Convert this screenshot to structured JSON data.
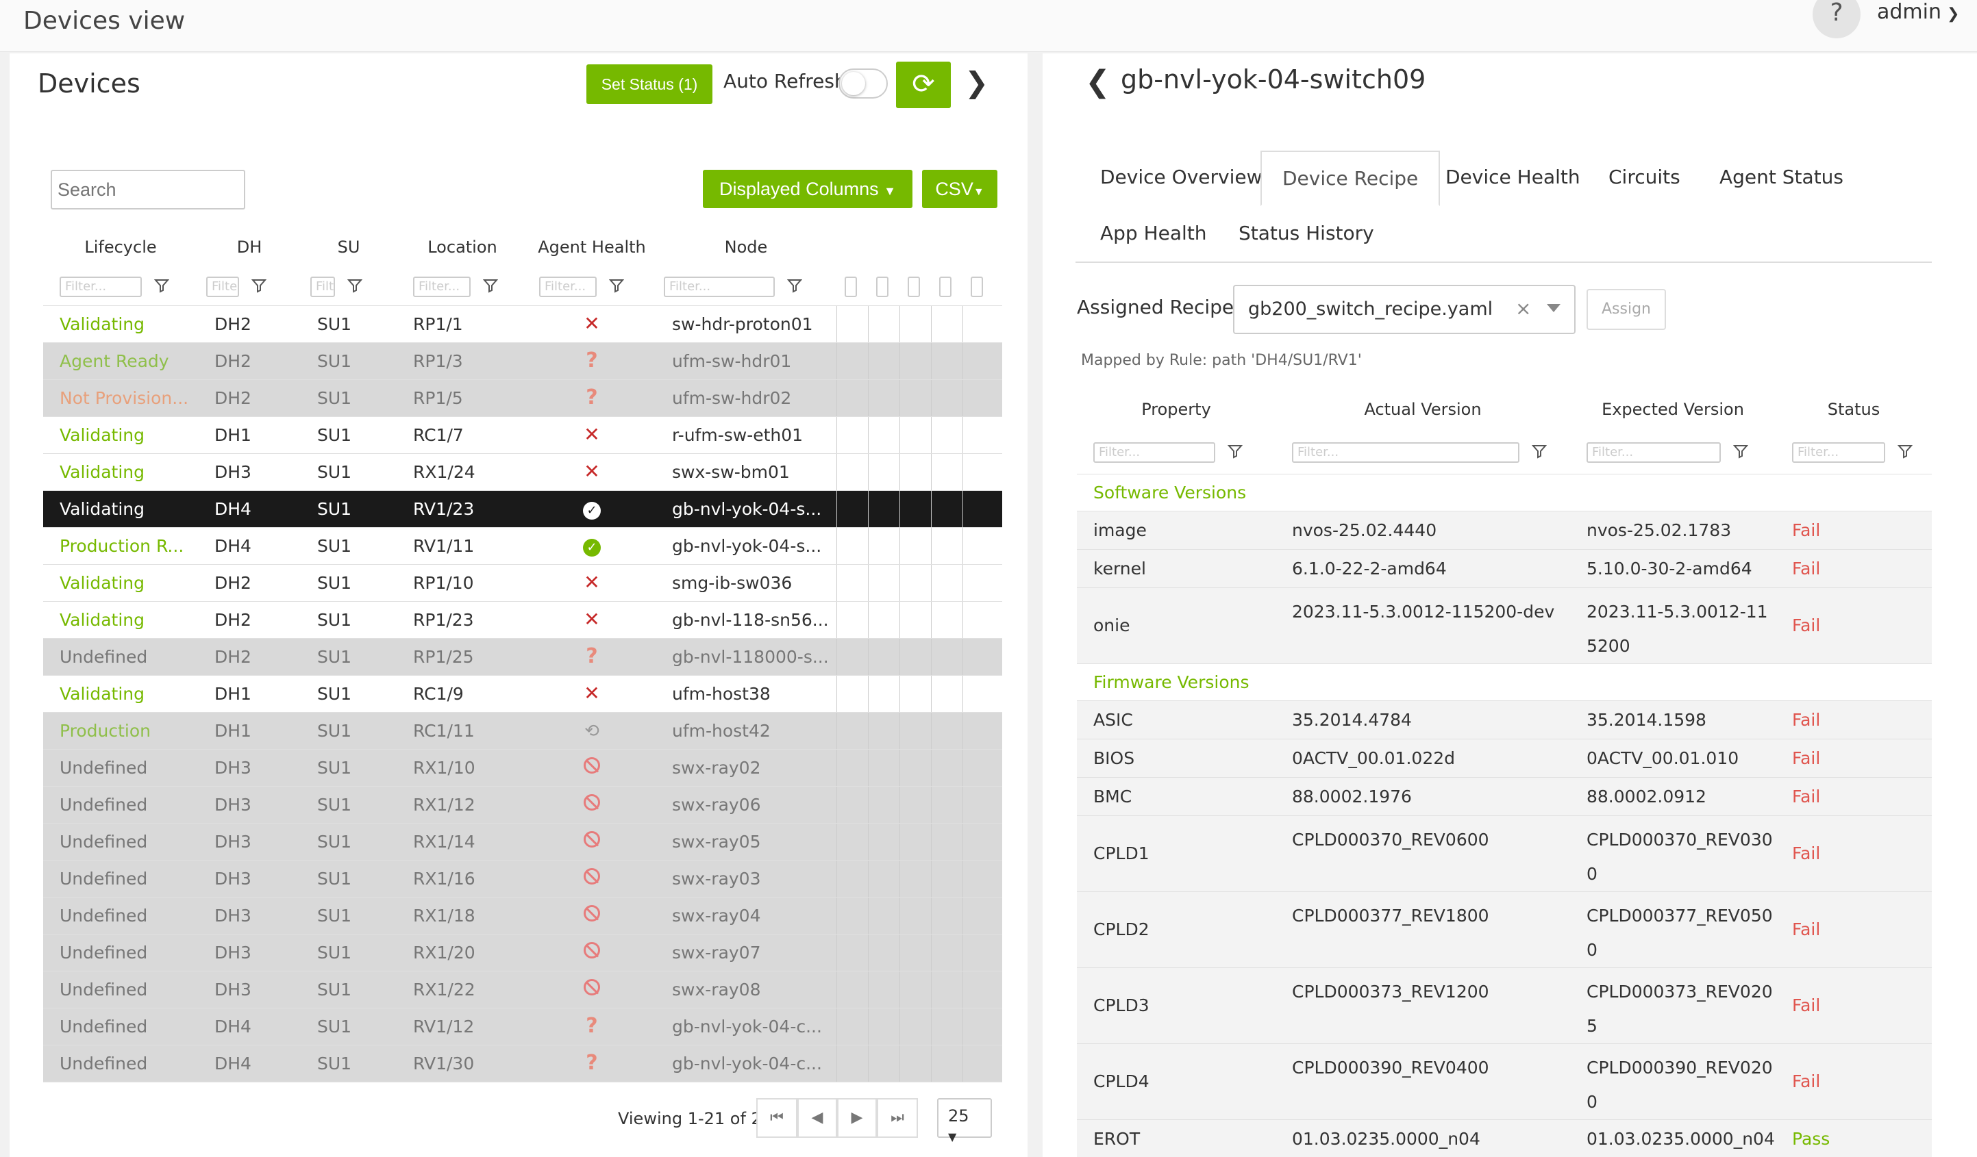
{
  "app": {
    "title": "Devices view",
    "user": "admin",
    "help": "?"
  },
  "left": {
    "title": "Devices",
    "set_status": "Set Status (1)",
    "auto_refresh": "Auto Refresh",
    "search_placeholder": "Search",
    "displayed_columns": "Displayed Columns",
    "csv": "CSV",
    "columns": [
      "Lifecycle",
      "DH",
      "SU",
      "Location",
      "Agent Health",
      "Node"
    ],
    "filter_placeholder": "Filter...",
    "rows": [
      {
        "lifecycle": "Validating",
        "dh": "DH2",
        "su": "SU1",
        "loc": "RP1/1",
        "health": "x",
        "node": "sw-hdr-proton01",
        "style": "data",
        "lc": "green"
      },
      {
        "lifecycle": "Agent Ready",
        "dh": "DH2",
        "su": "SU1",
        "loc": "RP1/3",
        "health": "q",
        "node": "ufm-sw-hdr01",
        "style": "grey",
        "lc": "grey-green"
      },
      {
        "lifecycle": "Not Provision...",
        "dh": "DH2",
        "su": "SU1",
        "loc": "RP1/5",
        "health": "q",
        "node": "ufm-sw-hdr02",
        "style": "grey",
        "lc": "orange"
      },
      {
        "lifecycle": "Validating",
        "dh": "DH1",
        "su": "SU1",
        "loc": "RC1/7",
        "health": "x",
        "node": "r-ufm-sw-eth01",
        "style": "data",
        "lc": "green"
      },
      {
        "lifecycle": "Validating",
        "dh": "DH3",
        "su": "SU1",
        "loc": "RX1/24",
        "health": "x",
        "node": "swx-sw-bm01",
        "style": "data",
        "lc": "green"
      },
      {
        "lifecycle": "Validating",
        "dh": "DH4",
        "su": "SU1",
        "loc": "RV1/23",
        "health": "ok-w",
        "node": "gb-nvl-yok-04-s...",
        "style": "sel",
        "lc": "sel"
      },
      {
        "lifecycle": "Production R...",
        "dh": "DH4",
        "su": "SU1",
        "loc": "RV1/11",
        "health": "ok",
        "node": "gb-nvl-yok-04-s...",
        "style": "data",
        "lc": "green"
      },
      {
        "lifecycle": "Validating",
        "dh": "DH2",
        "su": "SU1",
        "loc": "RP1/10",
        "health": "x",
        "node": "smg-ib-sw036",
        "style": "data",
        "lc": "green"
      },
      {
        "lifecycle": "Validating",
        "dh": "DH2",
        "su": "SU1",
        "loc": "RP1/23",
        "health": "x",
        "node": "gb-nvl-118-sn56...",
        "style": "data",
        "lc": "green"
      },
      {
        "lifecycle": "Undefined",
        "dh": "DH2",
        "su": "SU1",
        "loc": "RP1/25",
        "health": "q",
        "node": "gb-nvl-118000-s...",
        "style": "grey",
        "lc": ""
      },
      {
        "lifecycle": "Validating",
        "dh": "DH1",
        "su": "SU1",
        "loc": "RC1/9",
        "health": "x",
        "node": "ufm-host38",
        "style": "data",
        "lc": "green"
      },
      {
        "lifecycle": "Production",
        "dh": "DH1",
        "su": "SU1",
        "loc": "RC1/11",
        "health": "hist",
        "node": "ufm-host42",
        "style": "grey",
        "lc": "grey-green"
      },
      {
        "lifecycle": "Undefined",
        "dh": "DH3",
        "su": "SU1",
        "loc": "RX1/10",
        "health": "ban",
        "node": "swx-ray02",
        "style": "grey",
        "lc": ""
      },
      {
        "lifecycle": "Undefined",
        "dh": "DH3",
        "su": "SU1",
        "loc": "RX1/12",
        "health": "ban",
        "node": "swx-ray06",
        "style": "grey",
        "lc": ""
      },
      {
        "lifecycle": "Undefined",
        "dh": "DH3",
        "su": "SU1",
        "loc": "RX1/14",
        "health": "ban",
        "node": "swx-ray05",
        "style": "grey",
        "lc": ""
      },
      {
        "lifecycle": "Undefined",
        "dh": "DH3",
        "su": "SU1",
        "loc": "RX1/16",
        "health": "ban",
        "node": "swx-ray03",
        "style": "grey",
        "lc": ""
      },
      {
        "lifecycle": "Undefined",
        "dh": "DH3",
        "su": "SU1",
        "loc": "RX1/18",
        "health": "ban",
        "node": "swx-ray04",
        "style": "grey",
        "lc": ""
      },
      {
        "lifecycle": "Undefined",
        "dh": "DH3",
        "su": "SU1",
        "loc": "RX1/20",
        "health": "ban",
        "node": "swx-ray07",
        "style": "grey",
        "lc": ""
      },
      {
        "lifecycle": "Undefined",
        "dh": "DH3",
        "su": "SU1",
        "loc": "RX1/22",
        "health": "ban",
        "node": "swx-ray08",
        "style": "grey",
        "lc": ""
      },
      {
        "lifecycle": "Undefined",
        "dh": "DH4",
        "su": "SU1",
        "loc": "RV1/12",
        "health": "q",
        "node": "gb-nvl-yok-04-c...",
        "style": "grey",
        "lc": ""
      },
      {
        "lifecycle": "Undefined",
        "dh": "DH4",
        "su": "SU1",
        "loc": "RV1/30",
        "health": "q",
        "node": "gb-nvl-yok-04-c...",
        "style": "grey",
        "lc": ""
      }
    ],
    "pager": {
      "text": "Viewing 1-21 of 21",
      "page_size": "25"
    }
  },
  "right": {
    "device": "gb-nvl-yok-04-switch09",
    "tabs": [
      "Device Overview",
      "Device Recipe",
      "Device Health",
      "Circuits",
      "Agent Status",
      "App Health",
      "Status History"
    ],
    "active_tab": "Device Recipe",
    "assigned_label": "Assigned Recipe:",
    "recipe": "gb200_switch_recipe.yaml",
    "assign": "Assign",
    "mapped": "Mapped by Rule: path 'DH4/SU1/RV1'",
    "columns": [
      "Property",
      "Actual Version",
      "Expected Version",
      "Status"
    ],
    "filter_placeholder": "Filter...",
    "groups": [
      {
        "name": "Software Versions",
        "rows": [
          {
            "property": "image",
            "actual": "nvos-25.02.4440",
            "expected": "nvos-25.02.1783",
            "status": "Fail",
            "tall": false
          },
          {
            "property": "kernel",
            "actual": "6.1.0-22-2-amd64",
            "expected": "5.10.0-30-2-amd64",
            "status": "Fail",
            "tall": false
          },
          {
            "property": "onie",
            "actual": "2023.11-5.3.0012-115200-dev",
            "expected": "2023.11-5.3.0012-115200",
            "status": "Fail",
            "tall": true
          }
        ]
      },
      {
        "name": "Firmware Versions",
        "rows": [
          {
            "property": "ASIC",
            "actual": "35.2014.4784",
            "expected": "35.2014.1598",
            "status": "Fail",
            "tall": false
          },
          {
            "property": "BIOS",
            "actual": "0ACTV_00.01.022d",
            "expected": "0ACTV_00.01.010",
            "status": "Fail",
            "tall": false
          },
          {
            "property": "BMC",
            "actual": "88.0002.1976",
            "expected": "88.0002.0912",
            "status": "Fail",
            "tall": false
          },
          {
            "property": "CPLD1",
            "actual": "CPLD000370_REV0600",
            "expected": "CPLD000370_REV0300",
            "status": "Fail",
            "tall": true
          },
          {
            "property": "CPLD2",
            "actual": "CPLD000377_REV1800",
            "expected": "CPLD000377_REV0500",
            "status": "Fail",
            "tall": true
          },
          {
            "property": "CPLD3",
            "actual": "CPLD000373_REV1200",
            "expected": "CPLD000373_REV0205",
            "status": "Fail",
            "tall": true
          },
          {
            "property": "CPLD4",
            "actual": "CPLD000390_REV0400",
            "expected": "CPLD000390_REV0200",
            "status": "Fail",
            "tall": true
          },
          {
            "property": "EROT",
            "actual": "01.03.0235.0000_n04",
            "expected": "01.03.0235.0000_n04",
            "status": "Pass",
            "tall": false
          }
        ]
      }
    ]
  },
  "colors": {
    "accent": "#76b900",
    "fail": "#e0554e",
    "selected_row": "#1a1a1a"
  }
}
